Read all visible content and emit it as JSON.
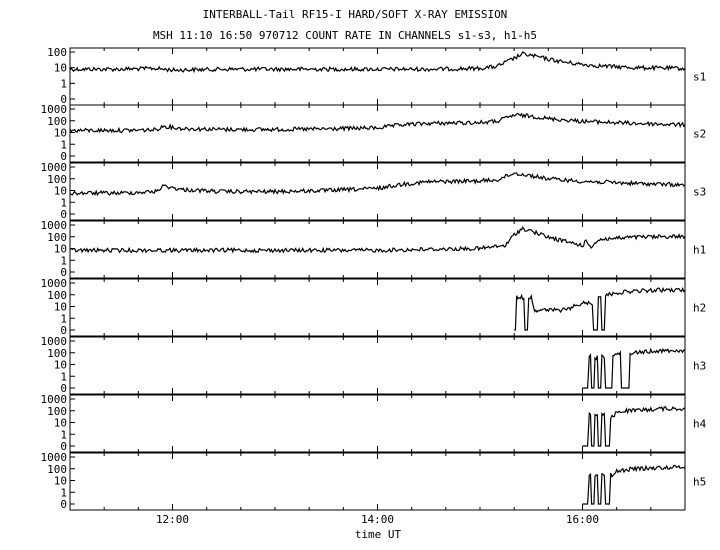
{
  "chart_data": {
    "type": "line",
    "title": "INTERBALL-Tail RF15-I HARD/SOFT X-RAY EMISSION",
    "subtitle": "MSH 11:10 16:50 970712  COUNT RATE IN CHANNELS s1-s3, h1-h5",
    "xlabel": "time UT",
    "x_range": [
      "11:00",
      "17:00"
    ],
    "x_ticks": [
      "12:00",
      "14:00",
      "16:00"
    ],
    "panels": [
      {
        "name": "s1",
        "y_ticks": [
          "100",
          "10",
          "1",
          "0"
        ],
        "x": [
          "11:00",
          "11:30",
          "11:50",
          "12:00",
          "12:30",
          "13:00",
          "13:30",
          "14:00",
          "14:30",
          "15:00",
          "15:10",
          "15:20",
          "15:25",
          "15:30",
          "15:40",
          "15:50",
          "16:00",
          "16:10",
          "16:30",
          "17:00"
        ],
        "y": [
          8,
          8,
          9,
          7,
          8,
          8,
          8,
          8,
          8,
          9,
          12,
          40,
          75,
          60,
          35,
          22,
          16,
          13,
          10,
          9
        ]
      },
      {
        "name": "s2",
        "y_ticks": [
          "1000",
          "100",
          "10",
          "1",
          "0"
        ],
        "x": [
          "11:00",
          "11:30",
          "11:50",
          "11:55",
          "12:05",
          "12:30",
          "13:00",
          "13:30",
          "14:00",
          "14:15",
          "14:30",
          "15:00",
          "15:10",
          "15:20",
          "15:30",
          "15:40",
          "16:00",
          "16:30",
          "17:00"
        ],
        "y": [
          15,
          15,
          17,
          35,
          22,
          18,
          18,
          20,
          25,
          45,
          60,
          70,
          90,
          300,
          250,
          150,
          90,
          60,
          45
        ]
      },
      {
        "name": "s3",
        "y_ticks": [
          "1000",
          "100",
          "10",
          "1",
          "0"
        ],
        "x": [
          "11:00",
          "11:30",
          "11:50",
          "11:55",
          "12:05",
          "12:30",
          "13:00",
          "13:30",
          "14:00",
          "14:15",
          "14:30",
          "15:00",
          "15:10",
          "15:20",
          "15:30",
          "15:40",
          "16:00",
          "16:30",
          "17:00"
        ],
        "y": [
          6,
          6,
          8,
          25,
          12,
          8,
          8,
          10,
          15,
          35,
          55,
          65,
          80,
          300,
          180,
          100,
          60,
          40,
          30
        ]
      },
      {
        "name": "h1",
        "y_ticks": [
          "1000",
          "100",
          "10",
          "1",
          "0"
        ],
        "x": [
          "11:00",
          "12:00",
          "13:00",
          "14:00",
          "14:40",
          "15:00",
          "15:15",
          "15:20",
          "15:25",
          "15:30",
          "15:40",
          "15:50",
          "16:00",
          "16:02",
          "16:05",
          "16:10",
          "16:30",
          "17:00"
        ],
        "y": [
          7,
          7,
          7,
          7,
          9,
          10,
          18,
          150,
          500,
          300,
          90,
          40,
          18,
          40,
          15,
          60,
          90,
          110
        ]
      },
      {
        "name": "h2",
        "y_ticks": [
          "1000",
          "100",
          "10",
          "1",
          "0"
        ],
        "x": [
          "15:20",
          "15:23",
          "15:25",
          "15:27",
          "15:30",
          "15:32",
          "15:34",
          "15:40",
          "15:50",
          "16:00",
          "16:05",
          "16:08",
          "16:10",
          "16:12",
          "16:15",
          "16:20",
          "16:30",
          "16:45",
          "17:00"
        ],
        "y": [
          0,
          60,
          60,
          0,
          60,
          5,
          5,
          5,
          5,
          20,
          20,
          0,
          80,
          0,
          100,
          150,
          200,
          250,
          250
        ]
      },
      {
        "name": "h3",
        "y_ticks": [
          "1000",
          "100",
          "10",
          "1",
          "0"
        ],
        "x": [
          "16:00",
          "16:03",
          "16:04",
          "16:06",
          "16:08",
          "16:10",
          "16:12",
          "16:15",
          "16:20",
          "16:25",
          "16:30",
          "16:45",
          "17:00"
        ],
        "y": [
          0,
          0,
          60,
          0,
          40,
          0,
          50,
          0,
          80,
          0,
          100,
          150,
          150
        ]
      },
      {
        "name": "h4",
        "y_ticks": [
          "1000",
          "100",
          "10",
          "1",
          "0"
        ],
        "x": [
          "16:00",
          "16:03",
          "16:04",
          "16:06",
          "16:08",
          "16:10",
          "16:12",
          "16:15",
          "16:18",
          "16:20",
          "16:25",
          "16:30",
          "16:45",
          "17:00"
        ],
        "y": [
          0,
          0,
          50,
          0,
          40,
          0,
          40,
          0,
          30,
          80,
          100,
          100,
          150,
          150
        ]
      },
      {
        "name": "h5",
        "y_ticks": [
          "1000",
          "100",
          "10",
          "1",
          "0"
        ],
        "x": [
          "16:00",
          "16:03",
          "16:04",
          "16:06",
          "16:08",
          "16:10",
          "16:12",
          "16:15",
          "16:18",
          "16:20",
          "16:25",
          "16:30",
          "16:45",
          "17:00"
        ],
        "y": [
          0,
          0,
          40,
          0,
          30,
          0,
          30,
          0,
          30,
          60,
          80,
          100,
          120,
          150
        ]
      }
    ]
  }
}
